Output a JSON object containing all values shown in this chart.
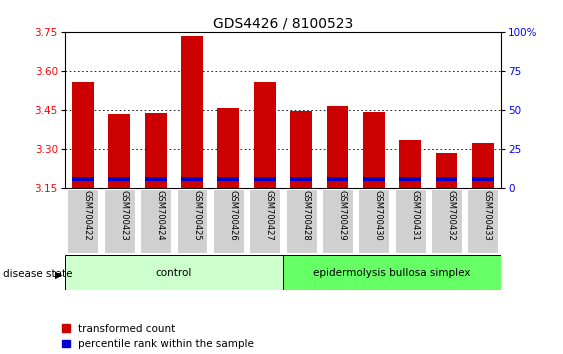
{
  "title": "GDS4426 / 8100523",
  "samples": [
    "GSM700422",
    "GSM700423",
    "GSM700424",
    "GSM700425",
    "GSM700426",
    "GSM700427",
    "GSM700428",
    "GSM700429",
    "GSM700430",
    "GSM700431",
    "GSM700432",
    "GSM700433"
  ],
  "red_values": [
    3.555,
    3.435,
    3.438,
    3.735,
    3.455,
    3.555,
    3.445,
    3.465,
    3.443,
    3.335,
    3.285,
    3.32
  ],
  "blue_values": [
    0.016,
    0.016,
    0.016,
    0.016,
    0.016,
    0.016,
    0.016,
    0.016,
    0.016,
    0.016,
    0.016,
    0.016
  ],
  "blue_bottoms": [
    3.175,
    3.175,
    3.175,
    3.175,
    3.175,
    3.175,
    3.175,
    3.175,
    3.175,
    3.175,
    3.175,
    3.175
  ],
  "ymin": 3.15,
  "ymax": 3.75,
  "yticks_left": [
    3.15,
    3.3,
    3.45,
    3.6,
    3.75
  ],
  "yticks_right": [
    0,
    25,
    50,
    75,
    100
  ],
  "yticks_right_labels": [
    "0",
    "25",
    "50",
    "75",
    "100%"
  ],
  "grid_values": [
    3.3,
    3.45,
    3.6
  ],
  "control_label": "control",
  "disease_label": "epidermolysis bullosa simplex",
  "control_count": 6,
  "disease_count": 6,
  "control_color": "#ccffcc",
  "disease_color": "#66ff66",
  "disease_state_label": "disease state",
  "legend_red_label": "transformed count",
  "legend_blue_label": "percentile rank within the sample",
  "bar_color_red": "#cc0000",
  "bar_color_blue": "#0000cc",
  "tick_label_bg": "#d0d0d0",
  "title_fontsize": 10,
  "axis_fontsize": 7.5,
  "legend_fontsize": 7.5,
  "bar_width": 0.6
}
